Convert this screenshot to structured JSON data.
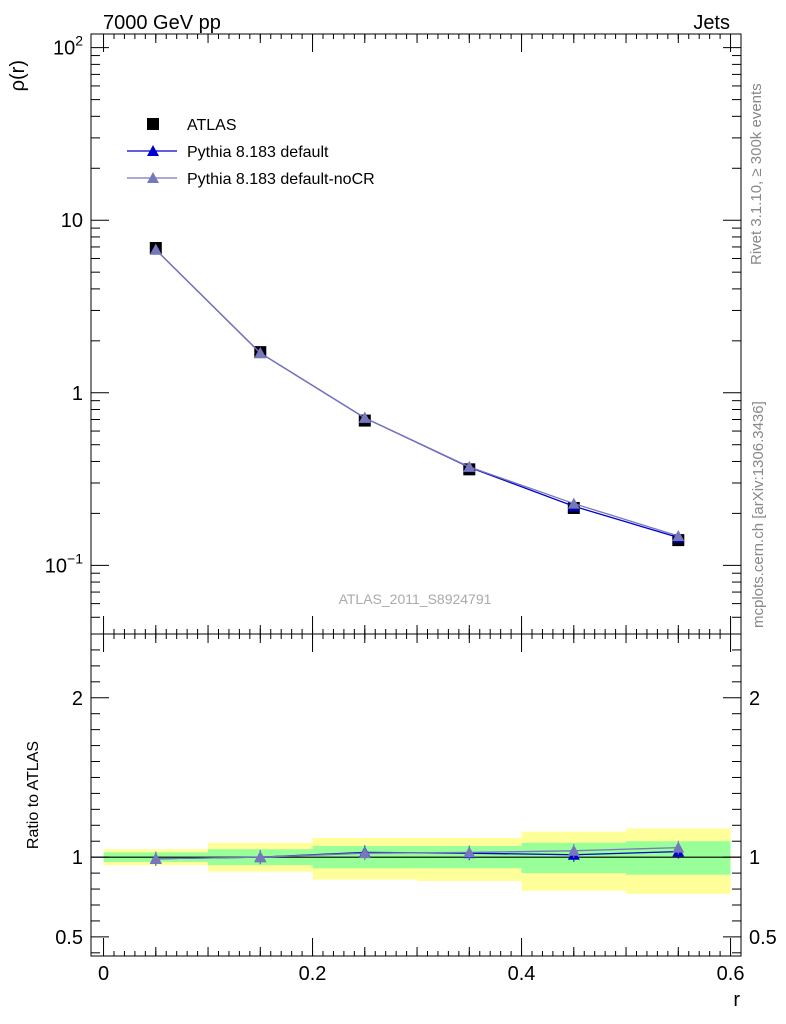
{
  "header": {
    "left_title": "7000 GeV pp",
    "right_title": "Jets"
  },
  "side_labels": {
    "rivet": "Rivet 3.1.10, ≥ 300k events",
    "mcplots": "mcplots.cern.ch [arXiv:1306.3436]"
  },
  "analysis_label": "ATLAS_2011_S8924791",
  "colors": {
    "atlas": "#000000",
    "pythia_default": "#0000cc",
    "pythia_nocr": "#7777bb",
    "band_inner": "#99ff99",
    "band_outer": "#ffff99"
  },
  "chart_data": [
    {
      "type": "line",
      "panel": "main",
      "xlabel": "",
      "ylabel": "ρ(r)",
      "yscale": "log",
      "xlim": [
        -0.012,
        0.61
      ],
      "ylim": [
        0.04,
        120
      ],
      "yticks": [
        {
          "value": 0.1,
          "base": "10",
          "exp": "−1"
        },
        {
          "value": 1,
          "label": "1"
        },
        {
          "value": 10,
          "label": "10"
        },
        {
          "value": 100,
          "base": "10",
          "exp": "2"
        }
      ],
      "x": [
        0.05,
        0.15,
        0.25,
        0.35,
        0.45,
        0.55
      ],
      "series": [
        {
          "name": "ATLAS",
          "marker": "square",
          "values": [
            6.9,
            1.72,
            0.69,
            0.36,
            0.215,
            0.14
          ]
        },
        {
          "name": "Pythia 8.183 default",
          "marker": "triangle",
          "values": [
            6.75,
            1.7,
            0.715,
            0.37,
            0.22,
            0.145
          ]
        },
        {
          "name": "Pythia 8.183 default-noCR",
          "marker": "triangle",
          "values": [
            6.75,
            1.7,
            0.715,
            0.372,
            0.228,
            0.148
          ]
        }
      ],
      "legend": "top-left"
    },
    {
      "type": "line",
      "panel": "ratio",
      "xlabel": "r",
      "ylabel": "Ratio to ATLAS",
      "xlim": [
        -0.012,
        0.61
      ],
      "ylim": [
        0.38,
        2.4
      ],
      "xticks": [
        {
          "value": 0,
          "label": "0"
        },
        {
          "value": 0.2,
          "label": "0.2"
        },
        {
          "value": 0.4,
          "label": "0.4"
        },
        {
          "value": 0.6,
          "label": "0.6"
        }
      ],
      "yticks": [
        {
          "value": 0.5,
          "label": "0.5"
        },
        {
          "value": 1,
          "label": "1"
        },
        {
          "value": 2,
          "label": "2"
        }
      ],
      "x": [
        0.05,
        0.15,
        0.25,
        0.35,
        0.45,
        0.55
      ],
      "bins": [
        [
          0,
          0.1
        ],
        [
          0.1,
          0.2
        ],
        [
          0.2,
          0.3
        ],
        [
          0.3,
          0.4
        ],
        [
          0.4,
          0.5
        ],
        [
          0.5,
          0.6
        ]
      ],
      "band_inner": [
        [
          0.97,
          1.03
        ],
        [
          0.95,
          1.05
        ],
        [
          0.93,
          1.07
        ],
        [
          0.93,
          1.07
        ],
        [
          0.9,
          1.09
        ],
        [
          0.89,
          1.1
        ]
      ],
      "band_outer": [
        [
          0.95,
          1.05
        ],
        [
          0.91,
          1.09
        ],
        [
          0.86,
          1.12
        ],
        [
          0.85,
          1.12
        ],
        [
          0.79,
          1.16
        ],
        [
          0.77,
          1.18
        ]
      ],
      "series": [
        {
          "name": "Pythia 8.183 default",
          "values": [
            0.99,
            1.0,
            1.03,
            1.025,
            1.015,
            1.035
          ]
        },
        {
          "name": "Pythia 8.183 default-noCR",
          "values": [
            0.99,
            1.0,
            1.025,
            1.03,
            1.04,
            1.06
          ]
        }
      ]
    }
  ]
}
